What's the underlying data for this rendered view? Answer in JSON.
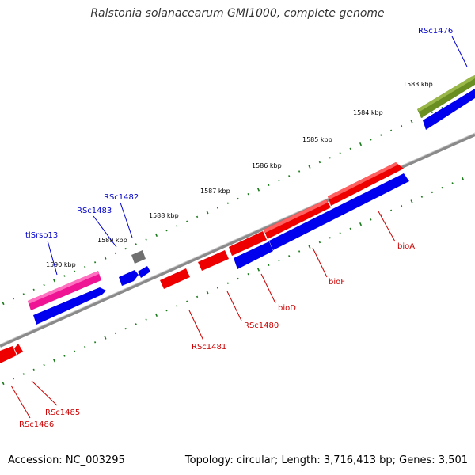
{
  "header": {
    "title": "Ralstonia solanacearum GMI1000, complete genome"
  },
  "footer": {
    "accession": "Accession: NC_003295",
    "summary": "Topology: circular; Length: 3,716,413 bp; Genes: 3,501"
  },
  "colors": {
    "backbone": "#8a8a8a",
    "tick": "#1a7a1a",
    "label_forward": "#0000cc",
    "label_reverse": "#cc0000",
    "cds": "#0000ee",
    "gene_red": "#ee0000",
    "gene_olive": "#6b8e23",
    "gene_pink": "#ee1493",
    "gene_gray": "#707070"
  },
  "scale": {
    "ticks": [
      "1583 kbp",
      "1584 kbp",
      "1585 kbp",
      "1586 kbp",
      "1587 kbp",
      "1588 kbp",
      "1589 kbp",
      "1590 kbp"
    ]
  },
  "genes": [
    {
      "name": "RSc1476",
      "strand": "forward"
    },
    {
      "name": "RSc1482",
      "strand": "forward"
    },
    {
      "name": "RSc1483",
      "strand": "forward"
    },
    {
      "name": "tlSrso13",
      "strand": "forward"
    },
    {
      "name": "bioA",
      "strand": "reverse"
    },
    {
      "name": "bioF",
      "strand": "reverse"
    },
    {
      "name": "bioD",
      "strand": "reverse"
    },
    {
      "name": "RSc1480",
      "strand": "reverse"
    },
    {
      "name": "RSc1481",
      "strand": "reverse"
    },
    {
      "name": "RSc1485",
      "strand": "reverse"
    },
    {
      "name": "RSc1486",
      "strand": "reverse"
    }
  ]
}
